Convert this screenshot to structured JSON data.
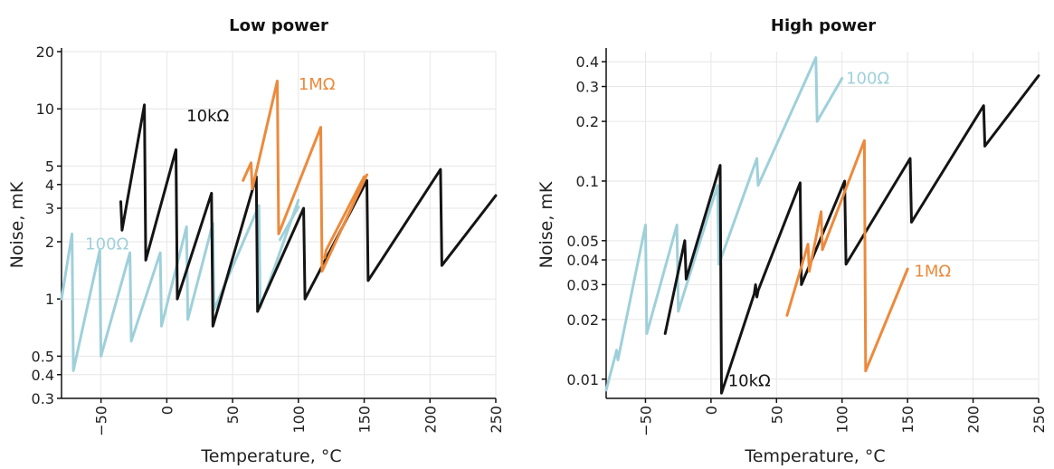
{
  "colors": {
    "100Ω": "#9fd0da",
    "10kΩ": "#141414",
    "1MΩ": "#ec8a3c"
  },
  "chart_data": [
    {
      "type": "line",
      "title": "Low power",
      "xlabel": "Temperature, °C",
      "ylabel": "Noise, mK",
      "y_scale": "log",
      "xlim": [
        -80,
        250
      ],
      "ylim": [
        0.3,
        20
      ],
      "x_ticks": [
        -50,
        0,
        50,
        100,
        150,
        200,
        250
      ],
      "x_tick_labels": [
        "−50",
        "0",
        "50",
        "100",
        "150",
        "200",
        "250"
      ],
      "y_ticks": [
        0.3,
        0.4,
        0.5,
        1,
        2,
        3,
        4,
        5,
        10,
        20
      ],
      "y_tick_labels": [
        "0.3",
        "0.4",
        "0.5",
        "1",
        "2",
        "3",
        "4",
        "5",
        "10",
        "20"
      ],
      "grid": true,
      "series": [
        {
          "name": "100Ω",
          "label_at": [
            -62,
            1.95
          ],
          "x": [
            -80,
            -72,
            -71,
            -51,
            -50,
            -28,
            -27,
            -5,
            -4,
            15,
            16,
            35,
            36,
            70,
            71,
            100
          ],
          "y": [
            1.0,
            2.2,
            0.42,
            1.8,
            0.5,
            1.75,
            0.6,
            1.75,
            0.72,
            2.4,
            0.78,
            2.5,
            0.88,
            3.1,
            0.9,
            3.3
          ]
        },
        {
          "name": "10kΩ",
          "label_at": [
            15,
            9.2
          ],
          "x": [
            -35,
            -34,
            -17,
            -16,
            7,
            8,
            34,
            35,
            68,
            69,
            104,
            105,
            152,
            153,
            208,
            209,
            250
          ],
          "y": [
            3.25,
            2.3,
            10.5,
            1.6,
            6.1,
            1.0,
            3.6,
            0.72,
            4.4,
            0.86,
            3.0,
            1.0,
            4.2,
            1.25,
            4.8,
            1.5,
            3.5
          ]
        },
        {
          "name": "1MΩ",
          "label_at": [
            100,
            13.5
          ],
          "x": [
            58,
            64,
            65,
            84,
            85,
            117,
            118,
            152
          ],
          "y": [
            4.2,
            5.2,
            3.8,
            14.0,
            2.2,
            8.0,
            1.4,
            4.5
          ]
        },
        {
          "name": "100Ω",
          "x": [
            86,
            100
          ],
          "y": [
            2.05,
            3.05
          ]
        },
        {
          "name": "1MΩ",
          "x": [
            120,
            121,
            150
          ],
          "y": [
            1.65,
            1.8,
            4.4
          ]
        }
      ]
    },
    {
      "type": "line",
      "title": "High power",
      "xlabel": "Temperature, °C",
      "ylabel": "Noise, mK",
      "y_scale": "log",
      "xlim": [
        -80,
        250
      ],
      "ylim": [
        0.008,
        0.45
      ],
      "x_ticks": [
        -50,
        0,
        50,
        100,
        150,
        200,
        250
      ],
      "x_tick_labels": [
        "−50",
        "0",
        "50",
        "100",
        "150",
        "200",
        "250"
      ],
      "y_ticks": [
        0.01,
        0.02,
        0.03,
        0.04,
        0.05,
        0.1,
        0.2,
        0.3,
        0.4
      ],
      "y_tick_labels": [
        "0.01",
        "0.02",
        "0.03",
        "0.04",
        "0.05",
        "0.1",
        "0.2",
        "0.3",
        "0.4"
      ],
      "grid": true,
      "series": [
        {
          "name": "100Ω",
          "label_at": [
            103,
            0.33
          ],
          "x": [
            -80,
            -72,
            -71,
            -50,
            -49,
            -26,
            -25,
            5,
            6,
            35,
            36,
            80,
            81,
            100
          ],
          "y": [
            0.0088,
            0.014,
            0.0125,
            0.06,
            0.017,
            0.06,
            0.022,
            0.095,
            0.038,
            0.13,
            0.095,
            0.42,
            0.2,
            0.33
          ]
        },
        {
          "name": "10kΩ",
          "label_at": [
            13,
            0.0098
          ],
          "x": [
            -35,
            -20,
            -19,
            7,
            8,
            33,
            34,
            35,
            36,
            68,
            69,
            102,
            103,
            152,
            153,
            208,
            209,
            250
          ],
          "y": [
            0.017,
            0.05,
            0.032,
            0.12,
            0.0085,
            0.027,
            0.03,
            0.026,
            0.028,
            0.098,
            0.03,
            0.1,
            0.038,
            0.13,
            0.062,
            0.24,
            0.15,
            0.34
          ]
        },
        {
          "name": "1MΩ",
          "label_at": [
            155,
            0.035
          ],
          "x": [
            58,
            74,
            75,
            84,
            85,
            117,
            118,
            150
          ],
          "y": [
            0.021,
            0.048,
            0.035,
            0.07,
            0.045,
            0.16,
            0.011,
            0.036
          ]
        }
      ]
    }
  ]
}
